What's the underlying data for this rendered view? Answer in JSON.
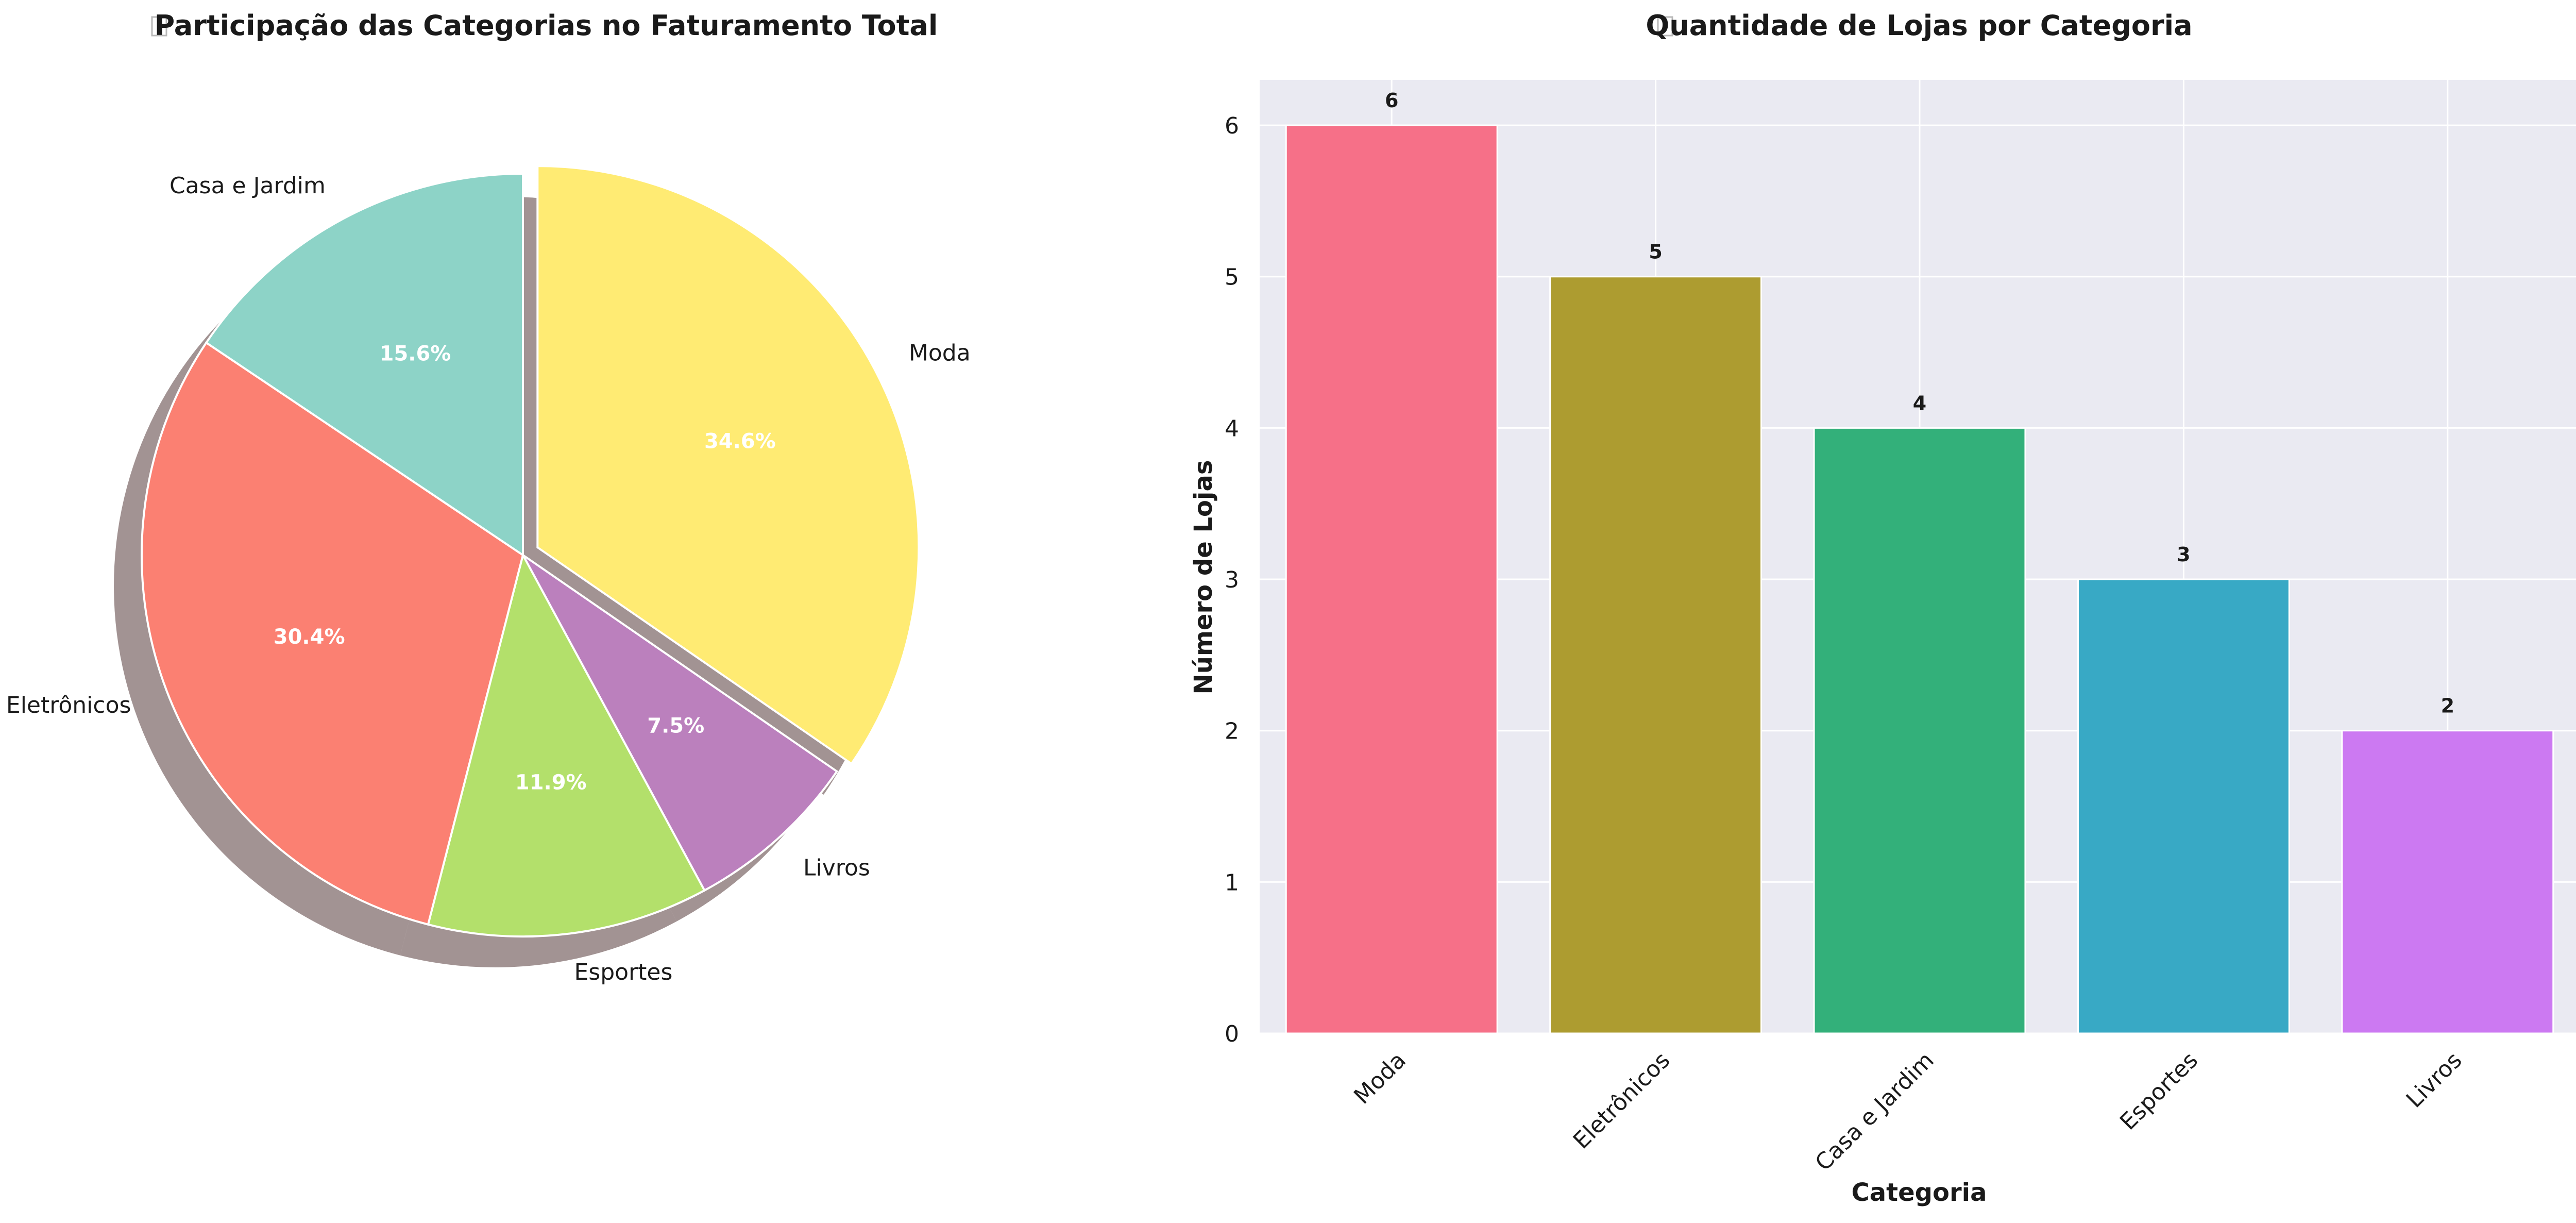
{
  "chart_data": [
    {
      "type": "pie",
      "title": "Participação das Categorias no Faturamento Total",
      "slices": [
        {
          "label": "Moda",
          "value": 34.6,
          "pct_label": "34.6%",
          "color": "#ffeb73",
          "explode": true
        },
        {
          "label": "Livros",
          "value": 7.5,
          "pct_label": "7.5%",
          "color": "#bb80bd",
          "explode": false
        },
        {
          "label": "Esportes",
          "value": 11.9,
          "pct_label": "11.9%",
          "color": "#b3e06b",
          "explode": false
        },
        {
          "label": "Eletrônicos",
          "value": 30.4,
          "pct_label": "30.4%",
          "color": "#fb8072",
          "explode": false
        },
        {
          "label": "Casa e Jardim",
          "value": 15.6,
          "pct_label": "15.6%",
          "color": "#8dd3c7",
          "explode": false
        }
      ],
      "start_angle": "90° (12 o'clock), counterclockwise",
      "shadow": true
    },
    {
      "type": "bar",
      "title": "Quantidade de Lojas por Categoria",
      "categories": [
        "Moda",
        "Eletrônicos",
        "Casa e Jardim",
        "Esportes",
        "Livros"
      ],
      "values": [
        6,
        5,
        4,
        3,
        2
      ],
      "value_labels": [
        "6",
        "5",
        "4",
        "3",
        "2"
      ],
      "colors": [
        "#f67088",
        "#ad9c30",
        "#33b07a",
        "#38a9c5",
        "#cc79f2"
      ],
      "xlabel": "Categoria",
      "ylabel": "Número de Lojas",
      "ylim": [
        0,
        6.3
      ],
      "yticks": [
        "0",
        "1",
        "2",
        "3",
        "4",
        "5",
        "6"
      ],
      "grid": true,
      "background": "#eaeaf2"
    }
  ]
}
